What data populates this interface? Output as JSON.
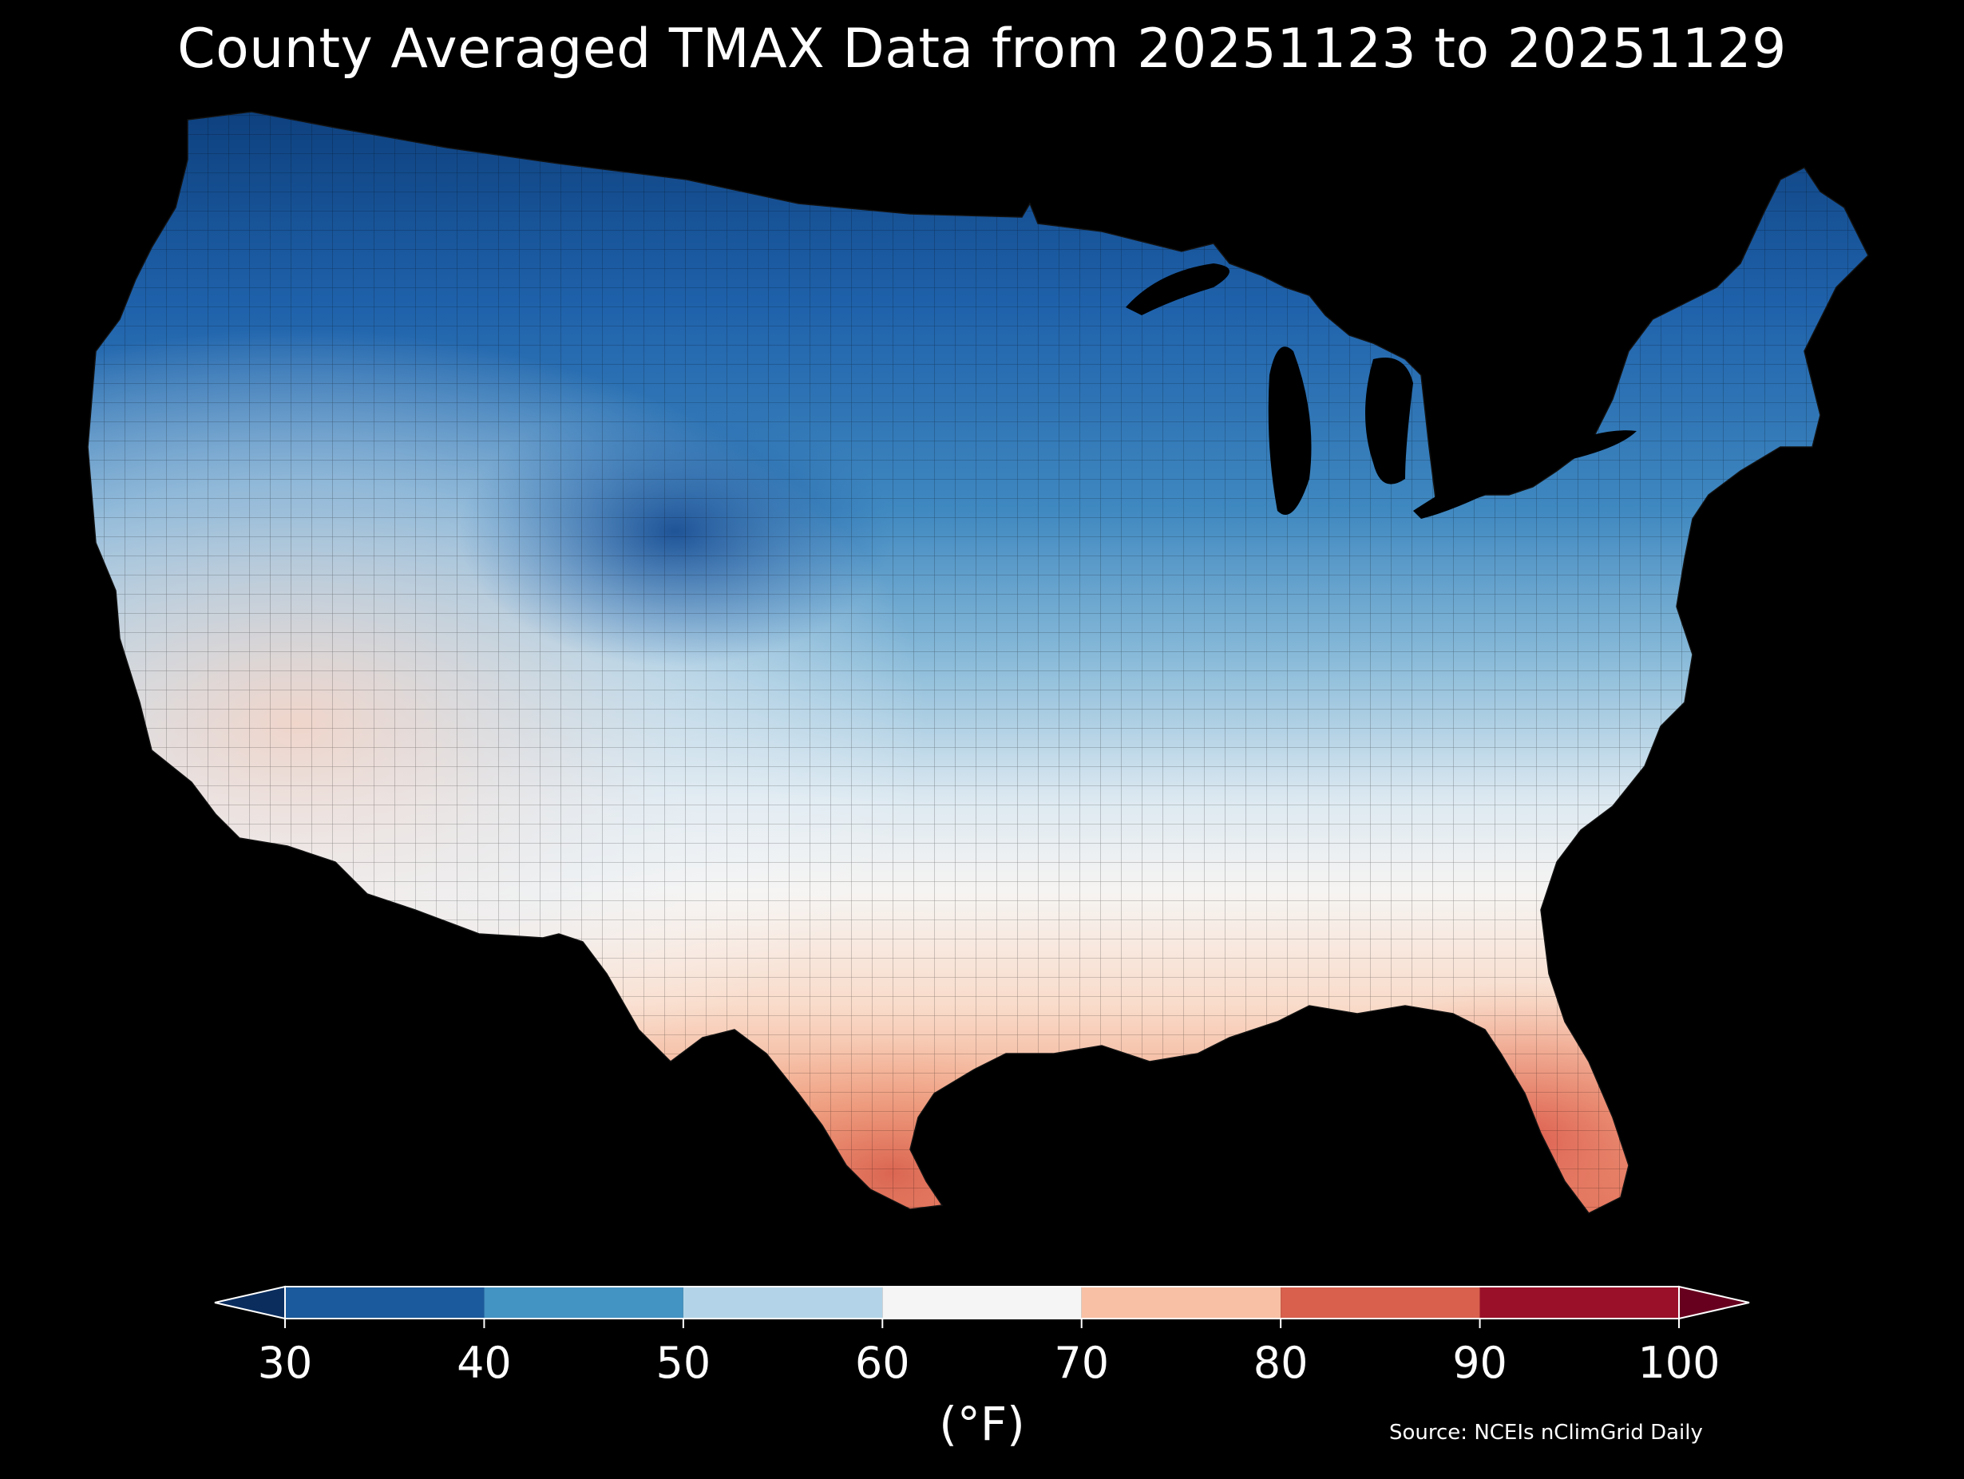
{
  "map": {
    "title": "County Averaged TMAX Data from 20251123 to 20251129",
    "region": "Contiguous United States",
    "variable": "TMAX",
    "source": "Source: NCEIs nClimGrid Daily"
  },
  "colorbar": {
    "unit_label": "(°F)",
    "ticks": [
      "30",
      "40",
      "50",
      "60",
      "70",
      "80",
      "90",
      "100"
    ],
    "bins": [
      {
        "from": 30,
        "to": 40,
        "color": "#1b5a9c"
      },
      {
        "from": 40,
        "to": 50,
        "color": "#4393c3"
      },
      {
        "from": 50,
        "to": 60,
        "color": "#b3d4e8"
      },
      {
        "from": 60,
        "to": 70,
        "color": "#f5f5f5"
      },
      {
        "from": 70,
        "to": 80,
        "color": "#f8c0a4"
      },
      {
        "from": 80,
        "to": 90,
        "color": "#d8604d"
      },
      {
        "from": 90,
        "to": 100,
        "color": "#9a1029"
      }
    ],
    "under_color": "#0a2d5e",
    "over_color": "#67001f"
  }
}
